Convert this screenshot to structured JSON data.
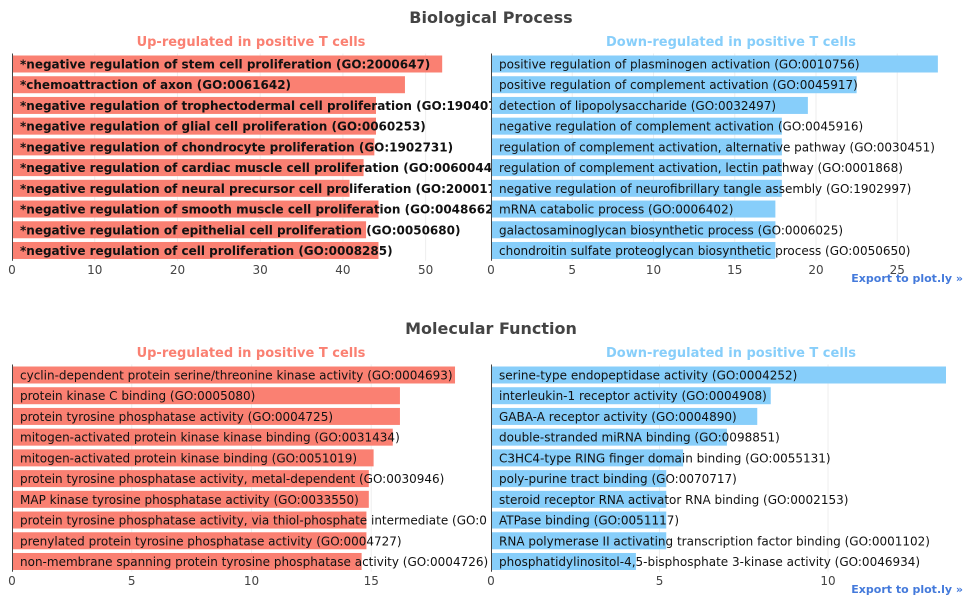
{
  "colors": {
    "up": "#fa8072",
    "down": "#87cefa",
    "title": "#444444",
    "export": "#447adb"
  },
  "export_label": "Export to plot.ly »",
  "chart_data": [
    {
      "type": "bar",
      "orientation": "horizontal",
      "title": "Biological Process",
      "panels": [
        {
          "subtitle": "Up-regulated in positive T cells",
          "bold_labels": true,
          "xlim": [
            0,
            55
          ],
          "ticks": [
            0,
            10,
            20,
            30,
            40,
            50
          ],
          "categories": [
            "*negative regulation of stem cell proliferation (GO:2000647)",
            "*chemoattraction of axon (GO:0061642)",
            "*negative regulation of trophectodermal cell proliferation (GO:190407",
            "*negative regulation of glial cell proliferation (GO:0060253)",
            "*negative regulation of chondrocyte proliferation (GO:1902731)",
            "*negative regulation of cardiac muscle cell proliferation (GO:0060044",
            "*negative regulation of neural precursor cell proliferation (GO:200017",
            "*negative regulation of smooth muscle cell proliferation (GO:0048662",
            "*negative regulation of epithelial cell proliferation (GO:0050680)",
            "*negative regulation of cell proliferation (GO:0008285)"
          ],
          "values": [
            52,
            47.5,
            44,
            44,
            43.8,
            42.5,
            40.8,
            44.3,
            42.8,
            44.3
          ]
        },
        {
          "subtitle": "Down-regulated in positive T cells",
          "bold_labels": false,
          "xlim": [
            0,
            28
          ],
          "ticks": [
            0,
            5,
            10,
            15,
            20,
            25
          ],
          "categories": [
            "positive regulation of plasminogen activation (GO:0010756)",
            "positive regulation of complement activation (GO:0045917)",
            "detection of lipopolysaccharide (GO:0032497)",
            "negative regulation of complement activation (GO:0045916)",
            "regulation of complement activation, alternative pathway (GO:0030451)",
            "regulation of complement activation, lectin pathway (GO:0001868)",
            "negative regulation of neurofibrillary tangle assembly (GO:1902997)",
            "mRNA catabolic process (GO:0006402)",
            "galactosaminoglycan biosynthetic process (GO:0006025)",
            "chondroitin sulfate proteoglycan biosynthetic process (GO:0050650)"
          ],
          "values": [
            27.5,
            22.5,
            19.5,
            17.9,
            17.9,
            17.9,
            17.9,
            17.5,
            17.5,
            17.5
          ]
        }
      ]
    },
    {
      "type": "bar",
      "orientation": "horizontal",
      "title": "Molecular Function",
      "panels": [
        {
          "subtitle": "Up-regulated in positive T cells",
          "bold_labels": false,
          "xlim": [
            0,
            19
          ],
          "ticks": [
            0,
            5,
            10,
            15
          ],
          "categories": [
            "cyclin-dependent protein serine/threonine kinase activity (GO:0004693)",
            "protein kinase C binding (GO:0005080)",
            "protein tyrosine phosphatase activity (GO:0004725)",
            "mitogen-activated protein kinase kinase binding (GO:0031434)",
            "mitogen-activated protein kinase binding (GO:0051019)",
            "protein tyrosine phosphatase activity, metal-dependent (GO:0030946)",
            "MAP kinase tyrosine phosphatase activity (GO:0033550)",
            "protein tyrosine phosphatase activity, via thiol-phosphate intermediate (GO:0",
            "prenylated protein tyrosine phosphatase activity (GO:0004727)",
            "non-membrane spanning protein tyrosine phosphatase activity (GO:0004726)"
          ],
          "values": [
            18.5,
            16.2,
            16.2,
            15.9,
            15.1,
            14.9,
            14.9,
            14.8,
            14.8,
            14.6
          ]
        },
        {
          "subtitle": "Down-regulated in positive T cells",
          "bold_labels": false,
          "xlim": [
            0,
            13.5
          ],
          "ticks": [
            0,
            5,
            10
          ],
          "categories": [
            "serine-type endopeptidase activity (GO:0004252)",
            "interleukin-1 receptor activity (GO:0004908)",
            "GABA-A receptor activity (GO:0004890)",
            "double-stranded miRNA binding (GO:0098851)",
            "C3HC4-type RING finger domain binding (GO:0055131)",
            "poly-purine tract binding (GO:0070717)",
            "steroid receptor RNA activator RNA binding (GO:0002153)",
            "ATPase binding (GO:0051117)",
            "RNA polymerase II activating transcription factor binding (GO:0001102)",
            "phosphatidylinositol-4,5-bisphosphate 3-kinase activity (GO:0046934)"
          ],
          "values": [
            13.5,
            8.3,
            7.9,
            7.0,
            5.7,
            5.2,
            5.2,
            5.2,
            5.2,
            4.3
          ]
        }
      ]
    }
  ]
}
